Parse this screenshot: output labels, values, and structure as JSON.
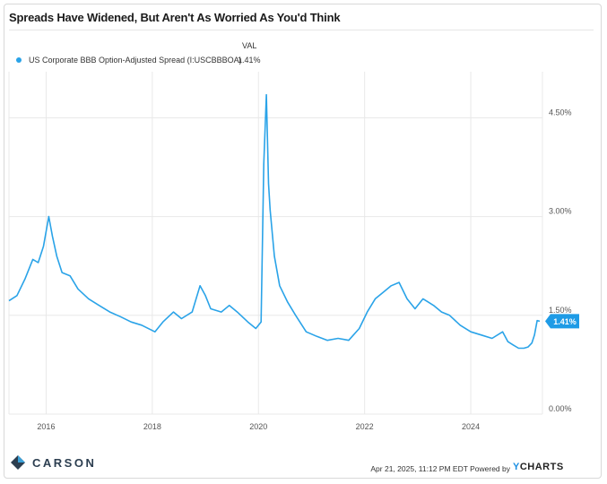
{
  "title": "Spreads Have Widened, But Aren't As Worried As You'd Think",
  "legend": {
    "header": "VAL",
    "series_name": "US Corporate BBB Option-Adjusted Spread (I:USCBBBOA)",
    "value": "1.41%"
  },
  "current_value_label": "1.41%",
  "footer": {
    "timestamp": "Apr 21, 2025, 11:12 PM EDT Powered by",
    "ycharts_y": "Y",
    "ycharts_rest": "CHARTS"
  },
  "brand": {
    "name": "CARSON"
  },
  "colors": {
    "series": "#2aa3e8",
    "badge": "#1e9be6",
    "grid": "#e8e8e8",
    "carson_blue": "#2c3e50"
  },
  "chart_data": {
    "type": "line",
    "title": "Spreads Have Widened, But Aren't As Worried As You'd Think",
    "xlabel": "",
    "ylabel": "",
    "ylim": [
      0,
      5.2
    ],
    "xlim": [
      2015.3,
      2025.35
    ],
    "y_ticks": [
      0,
      1.5,
      3.0,
      4.5
    ],
    "y_tick_labels": [
      "0.00%",
      "1.50%",
      "3.00%",
      "4.50%"
    ],
    "x_ticks": [
      2016,
      2018,
      2020,
      2022,
      2024
    ],
    "x_tick_labels": [
      "2016",
      "2018",
      "2020",
      "2022",
      "2024"
    ],
    "grid": true,
    "legend_position": "top-left",
    "series": [
      {
        "name": "US Corporate BBB Option-Adjusted Spread (I:USCBBBOA)",
        "x": [
          2015.3,
          2015.45,
          2015.6,
          2015.75,
          2015.85,
          2015.95,
          2016.05,
          2016.12,
          2016.2,
          2016.3,
          2016.45,
          2016.6,
          2016.8,
          2017.0,
          2017.2,
          2017.4,
          2017.6,
          2017.8,
          2018.05,
          2018.2,
          2018.4,
          2018.55,
          2018.75,
          2018.9,
          2019.0,
          2019.1,
          2019.3,
          2019.45,
          2019.6,
          2019.8,
          2019.95,
          2020.05,
          2020.1,
          2020.15,
          2020.19,
          2020.22,
          2020.3,
          2020.4,
          2020.55,
          2020.7,
          2020.9,
          2021.1,
          2021.3,
          2021.5,
          2021.7,
          2021.9,
          2022.05,
          2022.2,
          2022.35,
          2022.5,
          2022.65,
          2022.8,
          2022.95,
          2023.1,
          2023.2,
          2023.3,
          2023.45,
          2023.6,
          2023.8,
          2024.0,
          2024.2,
          2024.4,
          2024.6,
          2024.7,
          2024.8,
          2024.9,
          2025.0,
          2025.08,
          2025.15,
          2025.2,
          2025.25,
          2025.3
        ],
        "y": [
          1.72,
          1.8,
          2.05,
          2.35,
          2.3,
          2.55,
          3.0,
          2.7,
          2.4,
          2.15,
          2.1,
          1.9,
          1.75,
          1.65,
          1.55,
          1.48,
          1.4,
          1.35,
          1.25,
          1.4,
          1.55,
          1.45,
          1.55,
          1.95,
          1.8,
          1.6,
          1.55,
          1.65,
          1.55,
          1.4,
          1.3,
          1.4,
          3.8,
          4.85,
          3.5,
          3.1,
          2.4,
          1.95,
          1.7,
          1.5,
          1.25,
          1.18,
          1.12,
          1.15,
          1.12,
          1.3,
          1.55,
          1.75,
          1.85,
          1.95,
          2.0,
          1.75,
          1.6,
          1.75,
          1.7,
          1.65,
          1.55,
          1.5,
          1.35,
          1.25,
          1.2,
          1.15,
          1.25,
          1.1,
          1.05,
          1.0,
          1.0,
          1.02,
          1.08,
          1.2,
          1.42,
          1.41
        ]
      }
    ]
  }
}
